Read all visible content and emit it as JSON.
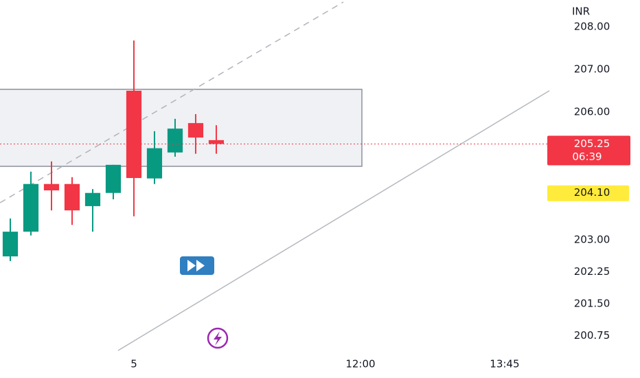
{
  "chart_data": {
    "type": "candlestick",
    "currency": "INR",
    "categories": [
      null,
      null,
      null,
      null,
      null,
      null,
      null,
      null,
      null,
      null,
      null
    ],
    "open": [
      202.61,
      203.19,
      204.31,
      204.31,
      203.79,
      204.1,
      206.5,
      204.44,
      205.05,
      205.74,
      205.34
    ],
    "high": [
      203.5,
      204.6,
      204.84,
      204.47,
      204.19,
      204.76,
      207.68,
      205.55,
      205.84,
      205.95,
      205.69
    ],
    "low": [
      202.5,
      203.1,
      203.69,
      203.35,
      203.19,
      203.95,
      203.55,
      204.31,
      204.95,
      205.02,
      205.02
    ],
    "close": [
      203.19,
      204.31,
      204.16,
      203.69,
      204.1,
      204.76,
      204.45,
      205.15,
      205.61,
      205.4,
      205.25
    ],
    "up_color": "#089981",
    "down_color": "#f23645",
    "ylim": [
      200.4,
      208.63
    ],
    "yticks": [
      {
        "value": 208,
        "label": "208.00"
      },
      {
        "value": 207,
        "label": "207.00"
      },
      {
        "value": 206,
        "label": "206.00"
      },
      {
        "value": 203,
        "label": "203.00"
      },
      {
        "value": 202.25,
        "label": "202.25"
      },
      {
        "value": 201.5,
        "label": "201.50"
      },
      {
        "value": 200.75,
        "label": "200.75"
      }
    ],
    "xlim": [
      -0.5,
      26.17
    ],
    "xticks": [
      {
        "value": 6,
        "label": "5"
      },
      {
        "value": 17,
        "label": "12:00"
      },
      {
        "value": 24,
        "label": "13:45"
      }
    ],
    "last_price": 205.25,
    "countdown": "06:39",
    "price_marker": {
      "value": 204.1,
      "label": "204.10"
    }
  }
}
